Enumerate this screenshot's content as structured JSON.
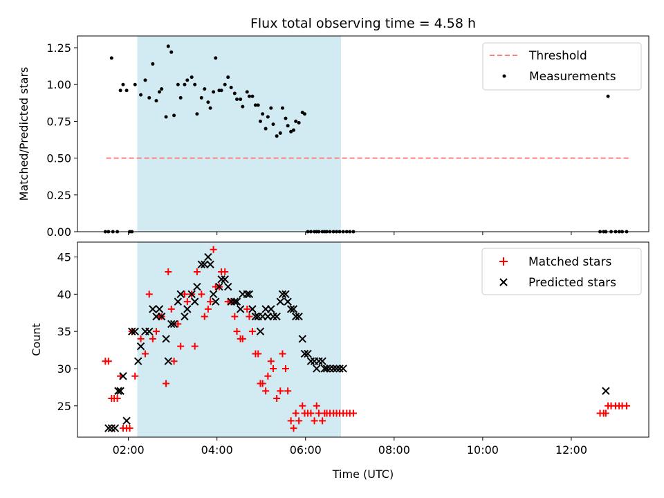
{
  "chart_data": [
    {
      "type": "scatter",
      "title": "Flux total observing time = 4.58 h",
      "xlabel": "",
      "ylabel": "Matched/Predicted stars",
      "x_unit": "hours (UTC)",
      "xlim": [
        0.85,
        13.75
      ],
      "ylim": [
        0.0,
        1.33
      ],
      "yticks": [
        0.0,
        0.25,
        0.5,
        0.75,
        1.0,
        1.25
      ],
      "ytick_labels": [
        "0.00",
        "0.25",
        "0.50",
        "0.75",
        "1.00",
        "1.25"
      ],
      "xticks": [
        2,
        4,
        6,
        8,
        10,
        12
      ],
      "shaded_span": [
        2.2,
        6.8
      ],
      "shaded_color": "#add8e6",
      "legend_position": "upper right",
      "legend": [
        "Threshold",
        "Measurements"
      ],
      "threshold": {
        "name": "Threshold",
        "value": 0.5,
        "x_range": [
          1.5,
          13.3
        ],
        "color": "#ff7f7f",
        "style": "dashed"
      },
      "series": [
        {
          "name": "Measurements",
          "color": "#000000",
          "x": [
            1.48,
            1.55,
            1.62,
            1.65,
            1.75,
            1.82,
            1.88,
            1.96,
            2.03,
            2.08,
            2.15,
            2.28,
            2.38,
            2.47,
            2.55,
            2.63,
            2.7,
            2.75,
            2.85,
            2.9,
            2.97,
            3.03,
            3.12,
            3.18,
            3.27,
            3.33,
            3.43,
            3.5,
            3.55,
            3.65,
            3.72,
            3.8,
            3.85,
            3.92,
            3.97,
            4.05,
            4.1,
            4.18,
            4.25,
            4.32,
            4.4,
            4.45,
            4.53,
            4.58,
            4.68,
            4.73,
            4.8,
            4.87,
            4.93,
            4.98,
            5.03,
            5.1,
            5.15,
            5.22,
            5.27,
            5.35,
            5.43,
            5.48,
            5.55,
            5.6,
            5.67,
            5.73,
            5.78,
            5.85,
            5.93,
            5.98,
            6.05,
            6.12,
            6.2,
            6.25,
            6.3,
            6.38,
            6.43,
            6.48,
            6.55,
            6.63,
            6.7,
            6.77,
            6.85,
            6.93,
            7.0,
            7.08,
            12.65,
            12.73,
            12.78,
            12.83,
            12.9,
            13.0,
            13.08,
            13.15,
            13.25
          ],
          "y": [
            0.0,
            0.0,
            1.18,
            0.0,
            0.0,
            0.96,
            1.0,
            0.96,
            0.0,
            0.0,
            1.0,
            0.93,
            1.03,
            0.91,
            1.14,
            0.89,
            0.95,
            0.97,
            0.78,
            1.26,
            1.22,
            0.79,
            1.0,
            0.91,
            1.0,
            1.03,
            1.05,
            1.0,
            0.8,
            0.91,
            0.97,
            0.88,
            0.84,
            0.95,
            1.18,
            0.96,
            0.96,
            1.0,
            1.05,
            0.98,
            0.94,
            0.9,
            0.9,
            0.85,
            0.95,
            0.92,
            0.92,
            0.86,
            0.86,
            0.75,
            0.8,
            0.7,
            0.78,
            0.84,
            0.73,
            0.65,
            0.67,
            0.84,
            0.77,
            0.72,
            0.68,
            0.69,
            0.75,
            0.74,
            0.81,
            0.8,
            0.0,
            0.0,
            0.0,
            0.0,
            0.0,
            0.0,
            0.0,
            0.0,
            0.0,
            0.0,
            0.0,
            0.0,
            0.0,
            0.0,
            0.0,
            0.0,
            0.0,
            0.0,
            0.0,
            0.92,
            0.0,
            0.0,
            0.0,
            0.0,
            0.0
          ]
        }
      ]
    },
    {
      "type": "scatter",
      "title": "",
      "xlabel": "Time (UTC)",
      "ylabel": "Count",
      "x_unit": "hours (UTC)",
      "xlim": [
        0.85,
        13.75
      ],
      "ylim": [
        20.8,
        47.0
      ],
      "yticks": [
        25,
        30,
        35,
        40,
        45
      ],
      "ytick_labels": [
        "25",
        "30",
        "35",
        "40",
        "45"
      ],
      "xticks": [
        2,
        4,
        6,
        8,
        10,
        12
      ],
      "xtick_labels": [
        "02:00",
        "04:00",
        "06:00",
        "08:00",
        "10:00",
        "12:00"
      ],
      "shaded_span": [
        2.2,
        6.8
      ],
      "shaded_color": "#add8e6",
      "legend_position": "upper right",
      "legend": [
        "Matched stars",
        "Predicted stars"
      ],
      "series": [
        {
          "name": "Matched stars",
          "marker": "+",
          "color": "#ff0000",
          "x": [
            1.48,
            1.55,
            1.62,
            1.68,
            1.75,
            1.82,
            1.88,
            1.96,
            2.03,
            2.08,
            2.15,
            2.28,
            2.38,
            2.47,
            2.55,
            2.63,
            2.7,
            2.75,
            2.85,
            2.9,
            2.97,
            3.03,
            3.12,
            3.18,
            3.27,
            3.33,
            3.43,
            3.5,
            3.55,
            3.65,
            3.72,
            3.8,
            3.85,
            3.92,
            3.97,
            4.05,
            4.1,
            4.18,
            4.25,
            4.32,
            4.4,
            4.45,
            4.53,
            4.58,
            4.68,
            4.73,
            4.8,
            4.87,
            4.93,
            4.98,
            5.03,
            5.1,
            5.15,
            5.22,
            5.27,
            5.35,
            5.43,
            5.48,
            5.55,
            5.6,
            5.67,
            5.73,
            5.78,
            5.85,
            5.93,
            5.98,
            6.05,
            6.12,
            6.2,
            6.25,
            6.3,
            6.38,
            6.43,
            6.48,
            6.55,
            6.63,
            6.7,
            6.77,
            6.85,
            6.93,
            7.0,
            7.08,
            12.65,
            12.73,
            12.78,
            12.83,
            12.9,
            13.0,
            13.08,
            13.15,
            13.25
          ],
          "y": [
            31,
            31,
            26,
            26,
            26,
            29,
            22,
            22,
            22,
            35,
            29,
            34,
            32,
            40,
            34,
            35,
            37,
            37,
            28,
            43,
            38,
            31,
            36,
            33,
            40,
            39,
            40,
            33,
            43,
            40,
            37,
            38,
            39,
            46,
            41,
            41,
            43,
            43,
            39,
            39,
            37,
            35,
            34,
            34,
            38,
            37,
            35,
            32,
            32,
            28,
            28,
            27,
            29,
            31,
            30,
            26,
            27,
            32,
            30,
            27,
            23,
            22,
            24,
            23,
            25,
            24,
            24,
            24,
            23,
            25,
            24,
            23,
            24,
            24,
            24,
            24,
            24,
            24,
            24,
            24,
            24,
            24,
            24,
            24,
            24,
            25,
            25,
            25,
            25,
            25,
            25
          ]
        },
        {
          "name": "Predicted stars",
          "marker": "x",
          "color": "#000000",
          "x": [
            1.55,
            1.62,
            1.7,
            1.77,
            1.82,
            1.88,
            1.96,
            2.08,
            2.15,
            2.22,
            2.28,
            2.38,
            2.47,
            2.55,
            2.63,
            2.7,
            2.75,
            2.85,
            2.9,
            2.97,
            3.03,
            3.12,
            3.18,
            3.27,
            3.33,
            3.43,
            3.5,
            3.55,
            3.65,
            3.72,
            3.8,
            3.85,
            3.92,
            3.97,
            4.05,
            4.1,
            4.18,
            4.25,
            4.32,
            4.4,
            4.45,
            4.53,
            4.58,
            4.68,
            4.73,
            4.8,
            4.87,
            4.93,
            4.98,
            5.03,
            5.1,
            5.15,
            5.22,
            5.27,
            5.35,
            5.43,
            5.48,
            5.55,
            5.6,
            5.67,
            5.73,
            5.78,
            5.85,
            5.93,
            5.98,
            6.05,
            6.12,
            6.2,
            6.25,
            6.3,
            6.38,
            6.43,
            6.48,
            6.55,
            6.63,
            6.7,
            6.77,
            6.85,
            12.78
          ],
          "y": [
            22,
            22,
            22,
            27,
            27,
            29,
            23,
            35,
            35,
            31,
            33,
            35,
            35,
            38,
            37,
            38,
            37,
            34,
            31,
            36,
            36,
            39,
            40,
            37,
            38,
            40,
            39,
            41,
            44,
            44,
            45,
            44,
            40,
            39,
            41,
            42,
            42,
            41,
            39,
            39,
            39,
            38,
            40,
            40,
            40,
            38,
            37,
            37,
            35,
            37,
            38,
            37,
            38,
            37,
            37,
            39,
            40,
            40,
            39,
            38,
            38,
            37,
            37,
            34,
            32,
            32,
            31,
            31,
            30,
            31,
            31,
            30,
            30,
            30,
            30,
            30,
            30,
            30,
            27
          ]
        }
      ]
    }
  ]
}
